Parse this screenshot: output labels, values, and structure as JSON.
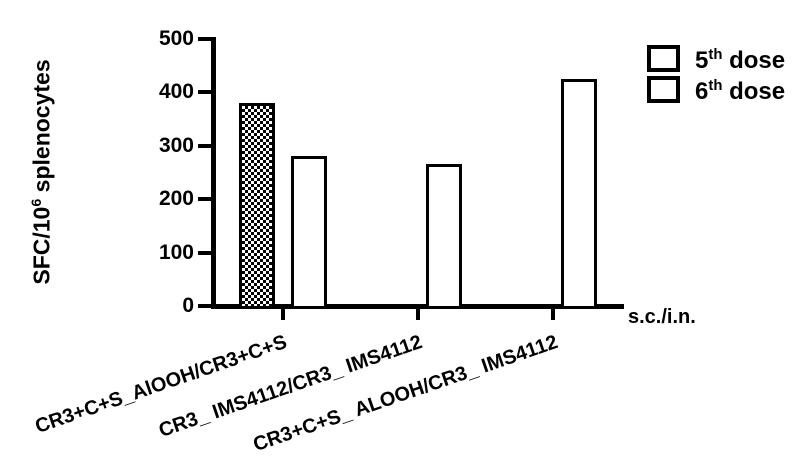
{
  "chart_data": {
    "type": "bar",
    "title": "",
    "ylabel": {
      "base": "SFC/10",
      "sup": "6",
      "rest": " splenocytes"
    },
    "ylim": [
      0,
      500
    ],
    "yticks": [
      0,
      100,
      200,
      300,
      400,
      500
    ],
    "categories": [
      "CR3+C+S_AlOOH/CR3+C+S",
      "CR3_ IMS4112/CR3_ IMS4112",
      "CR3+C+S_ ALOOH/CR3_ IMS4112"
    ],
    "series": [
      {
        "name": "5th dose",
        "pattern": "checker",
        "values": [
          380,
          null,
          null
        ]
      },
      {
        "name": "6th dose",
        "pattern": "plain",
        "values": [
          280,
          265,
          425
        ]
      }
    ],
    "legend": [
      {
        "num": "5",
        "sup": "th",
        "rest": " dose",
        "pattern": "checker"
      },
      {
        "num": "6",
        "sup": "th",
        "rest": " dose",
        "pattern": "plain"
      }
    ],
    "legend_position": "top-right",
    "grid": false,
    "x_axis_end_label": "s.c./i.n."
  },
  "colors": {
    "ink": "#000000",
    "background": "#ffffff"
  }
}
